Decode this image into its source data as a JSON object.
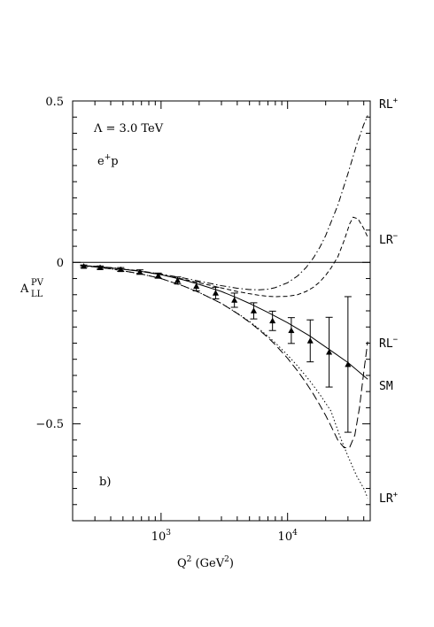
{
  "chart_data": {
    "type": "line",
    "panel_label": "b)",
    "annotation_lambda": "Λ = 3.0 TeV",
    "annotation_beam_base": "e",
    "annotation_beam_sup": "+",
    "annotation_beam_tail": "p",
    "ylabel_main": "A",
    "ylabel_sup": "PV",
    "ylabel_sub": "LL",
    "xlabel_main": "Q",
    "xlabel_sup": "2",
    "xlabel_unit_open": " (GeV",
    "xlabel_unit_sup": "2",
    "xlabel_unit_close": ")",
    "x_scale": "log",
    "xlim": [
      200,
      45000
    ],
    "ylim": [
      -0.8,
      0.5
    ],
    "x_tick_labels": [
      {
        "value": 1000,
        "base": "10",
        "exp": "3"
      },
      {
        "value": 10000,
        "base": "10",
        "exp": "4"
      }
    ],
    "y_ticks": [
      0.5,
      0,
      -0.5
    ],
    "y_tick_labels": [
      "0.5",
      "0",
      "−0.5"
    ],
    "zero_line": 0,
    "series": [
      {
        "base": "RL",
        "sup": "+",
        "style": "dashdot",
        "x": [
          230,
          300,
          400,
          500,
          700,
          1000,
          1500,
          2000,
          3000,
          4000,
          5000,
          6000,
          7000,
          8000,
          10000,
          12000,
          14000,
          16000,
          18000,
          20000,
          25000,
          30000,
          35000,
          40000,
          43000
        ],
        "y": [
          -0.01,
          -0.012,
          -0.016,
          -0.02,
          -0.027,
          -0.036,
          -0.048,
          -0.058,
          -0.072,
          -0.08,
          -0.084,
          -0.085,
          -0.083,
          -0.078,
          -0.063,
          -0.042,
          -0.016,
          0.014,
          0.047,
          0.083,
          0.178,
          0.275,
          0.362,
          0.427,
          0.455
        ]
      },
      {
        "base": "LR",
        "sup": "−",
        "style": "dashed",
        "x": [
          230,
          300,
          400,
          500,
          700,
          1000,
          1500,
          2000,
          3000,
          4000,
          5000,
          6000,
          7000,
          8000,
          10000,
          12000,
          14000,
          16000,
          18000,
          20000,
          22000,
          25000,
          28000,
          31000,
          33000,
          36000,
          40000,
          43000
        ],
        "y": [
          -0.01,
          -0.012,
          -0.017,
          -0.021,
          -0.028,
          -0.038,
          -0.052,
          -0.063,
          -0.079,
          -0.09,
          -0.097,
          -0.102,
          -0.105,
          -0.106,
          -0.105,
          -0.1,
          -0.09,
          -0.077,
          -0.06,
          -0.04,
          -0.018,
          0.018,
          0.068,
          0.12,
          0.14,
          0.135,
          0.105,
          0.078
        ]
      },
      {
        "base": "RL",
        "sup": "−",
        "style": "longdash",
        "x": [
          230,
          300,
          400,
          500,
          700,
          1000,
          1500,
          2000,
          3000,
          4000,
          5000,
          6000,
          7000,
          8000,
          10000,
          12000,
          14000,
          16000,
          18000,
          20000,
          22000,
          25000,
          28000,
          31000,
          34000,
          37000,
          40000,
          43000
        ],
        "y": [
          -0.01,
          -0.014,
          -0.02,
          -0.026,
          -0.036,
          -0.05,
          -0.073,
          -0.093,
          -0.127,
          -0.158,
          -0.185,
          -0.21,
          -0.233,
          -0.255,
          -0.297,
          -0.336,
          -0.373,
          -0.408,
          -0.442,
          -0.474,
          -0.506,
          -0.551,
          -0.574,
          -0.572,
          -0.535,
          -0.45,
          -0.34,
          -0.245
        ]
      },
      {
        "base": "SM",
        "sup": "",
        "style": "solid",
        "x": [
          230,
          300,
          400,
          500,
          700,
          1000,
          1500,
          2000,
          3000,
          4000,
          5000,
          7000,
          10000,
          15000,
          20000,
          30000,
          43000
        ],
        "y": [
          -0.01,
          -0.013,
          -0.017,
          -0.021,
          -0.028,
          -0.038,
          -0.054,
          -0.068,
          -0.09,
          -0.11,
          -0.127,
          -0.155,
          -0.187,
          -0.228,
          -0.262,
          -0.31,
          -0.362
        ]
      },
      {
        "base": "LR",
        "sup": "+",
        "style": "dotted",
        "x": [
          230,
          300,
          400,
          500,
          700,
          1000,
          1500,
          2000,
          3000,
          4000,
          5000,
          6000,
          7000,
          8000,
          10000,
          12000,
          15000,
          18000,
          22000,
          26000,
          30000,
          35000,
          40000,
          43000
        ],
        "y": [
          -0.01,
          -0.014,
          -0.02,
          -0.026,
          -0.036,
          -0.05,
          -0.073,
          -0.093,
          -0.127,
          -0.157,
          -0.183,
          -0.207,
          -0.229,
          -0.249,
          -0.287,
          -0.321,
          -0.367,
          -0.409,
          -0.46,
          -0.54,
          -0.6,
          -0.66,
          -0.7,
          -0.73
        ]
      }
    ],
    "data_points": {
      "marker": "triangle",
      "x": [
        245,
        330,
        480,
        680,
        950,
        1350,
        1900,
        2700,
        3800,
        5400,
        7600,
        10700,
        15100,
        21300,
        30000
      ],
      "y": [
        -0.012,
        -0.016,
        -0.022,
        -0.03,
        -0.041,
        -0.056,
        -0.074,
        -0.095,
        -0.117,
        -0.15,
        -0.181,
        -0.211,
        -0.243,
        -0.278,
        -0.316
      ],
      "err": [
        0.004,
        0.005,
        0.006,
        0.007,
        0.008,
        0.011,
        0.014,
        0.018,
        0.022,
        0.025,
        0.03,
        0.04,
        0.065,
        0.108,
        0.21
      ]
    }
  }
}
